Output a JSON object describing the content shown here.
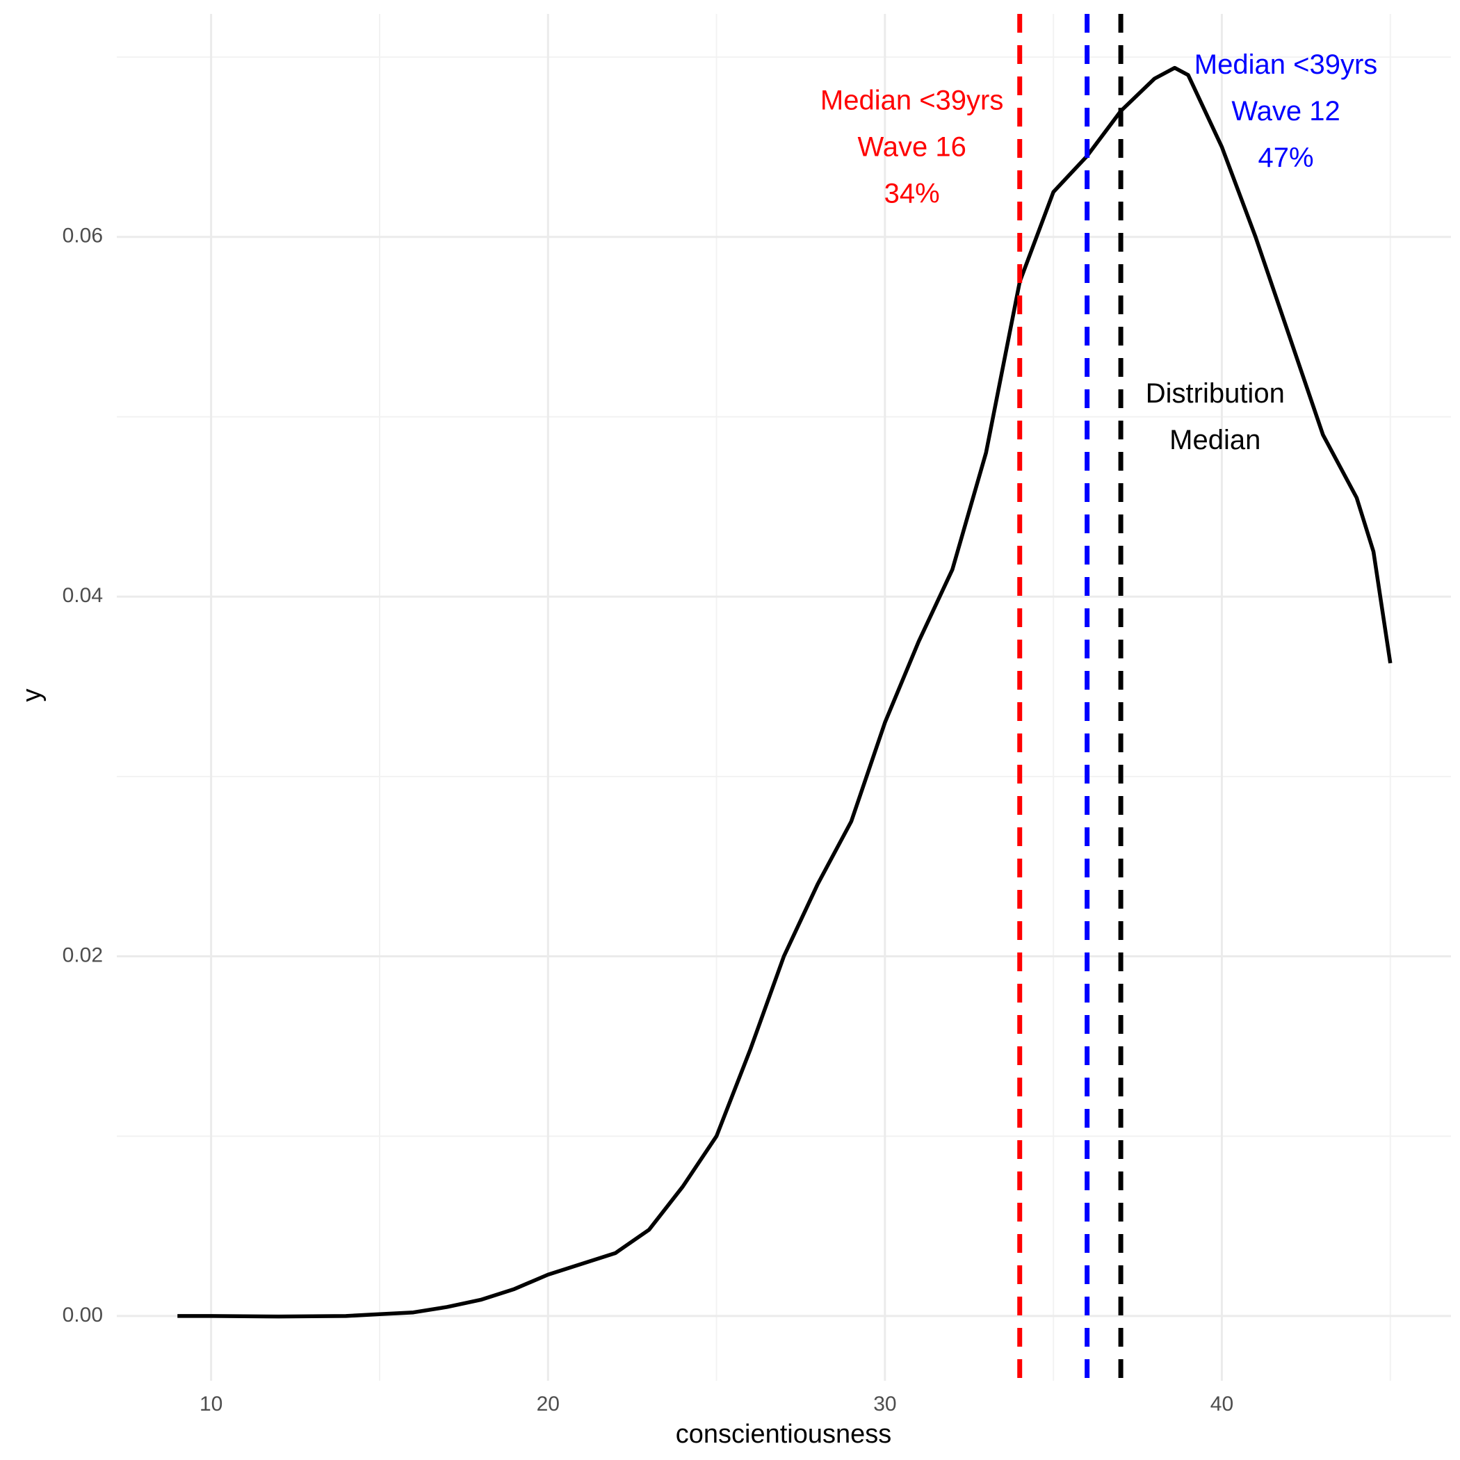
{
  "chart_data": {
    "type": "line",
    "x_label": "conscientiousness",
    "y_label": "y",
    "x": [
      9,
      10,
      12,
      14,
      15,
      16,
      17,
      18,
      19,
      20,
      21,
      22,
      23,
      24,
      25,
      26,
      27,
      28,
      29,
      30,
      31,
      32,
      33,
      34,
      35,
      36,
      37,
      38,
      38.6,
      39,
      40,
      41,
      42,
      43,
      44,
      44.5,
      45
    ],
    "values": [
      0.0,
      0.0,
      -3e-05,
      0.0,
      0.0001,
      0.0002,
      0.0005,
      0.0009,
      0.0015,
      0.0023,
      0.0029,
      0.0035,
      0.0048,
      0.0072,
      0.01,
      0.0148,
      0.02,
      0.024,
      0.0275,
      0.033,
      0.0375,
      0.0415,
      0.048,
      0.0575,
      0.0625,
      0.0645,
      0.067,
      0.0688,
      0.0694,
      0.069,
      0.065,
      0.06,
      0.0545,
      0.049,
      0.0455,
      0.0425,
      0.0363
    ],
    "color": "#000000",
    "vlines": [
      {
        "x": 34,
        "color": "#ff0000"
      },
      {
        "x": 36,
        "color": "#0000ff"
      },
      {
        "x": 37,
        "color": "#000000"
      }
    ],
    "annotations": [
      {
        "lines": [
          "Median <39yrs",
          "Wave 16",
          "34%"
        ],
        "x": 30.8,
        "y": 0.0649,
        "color": "#ff0000"
      },
      {
        "lines": [
          "Median <39yrs",
          "Wave 12",
          "47%"
        ],
        "x": 41.9,
        "y": 0.0669,
        "color": "#0000ff"
      },
      {
        "lines": [
          "Distribution",
          "Median"
        ],
        "x": 39.8,
        "y": 0.0499,
        "color": "#000000"
      }
    ],
    "xlim": [
      7.2,
      46.8
    ],
    "ylim": [
      -0.0036,
      0.0724
    ],
    "xticks": [
      10,
      20,
      30,
      40
    ],
    "yticks": [
      {
        "value": 0,
        "label": "0.00"
      },
      {
        "value": 0.02,
        "label": "0.02"
      },
      {
        "value": 0.04,
        "label": "0.04"
      },
      {
        "value": 0.06,
        "label": "0.06"
      }
    ],
    "grid": true
  }
}
